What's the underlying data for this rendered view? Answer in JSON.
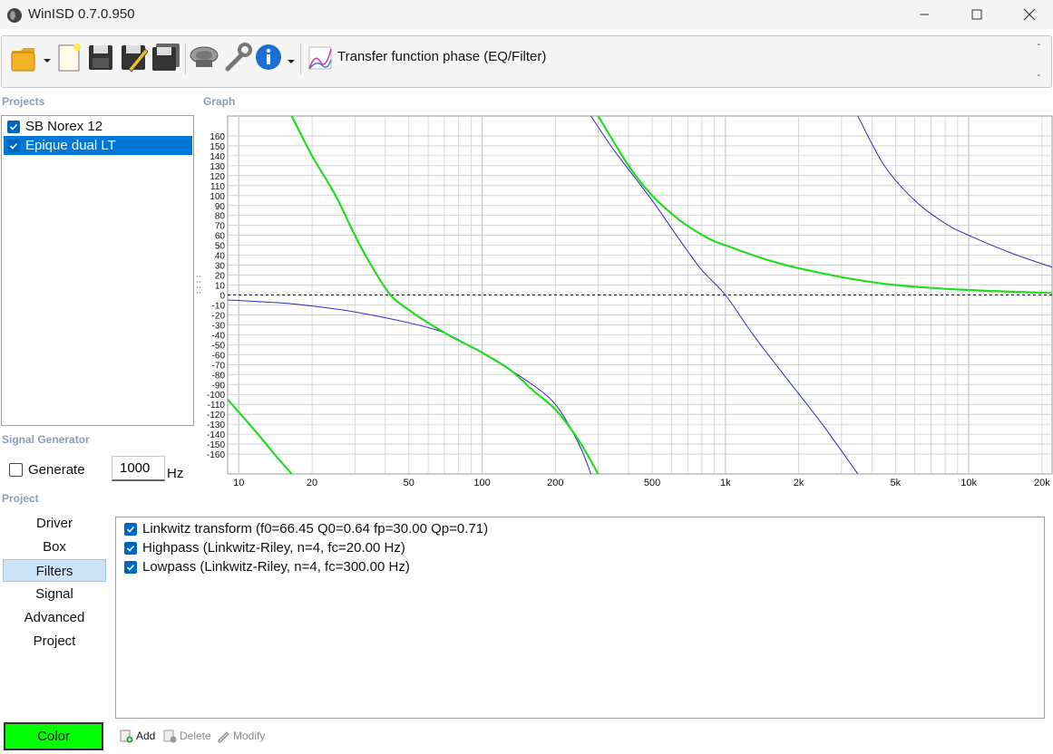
{
  "window": {
    "title": "WinISD 0.7.0.950"
  },
  "toolbar": {
    "graph_title": "Transfer function phase (EQ/Filter)",
    "dash_top": "-",
    "dash_bottom": "-"
  },
  "projects": {
    "label": "Projects",
    "items": [
      {
        "name": "SB Norex 12",
        "checked": true,
        "selected": false
      },
      {
        "name": "Epique dual LT",
        "checked": true,
        "selected": true
      }
    ]
  },
  "graph": {
    "label": "Graph"
  },
  "signal_generator": {
    "label": "Signal Generator",
    "generate_label": "Generate",
    "frequency": "1000",
    "unit": "Hz"
  },
  "project": {
    "label": "Project",
    "nav": [
      "Driver",
      "Box",
      "Filters",
      "Signal",
      "Advanced",
      "Project"
    ],
    "active_nav": "Filters",
    "color_label": "Color"
  },
  "filters": {
    "items": [
      "Linkwitz transform (f0=66.45 Q0=0.64 fp=30.00 Qp=0.71)",
      "Highpass (Linkwitz-Riley, n=4, fc=20.00 Hz)",
      "Lowpass (Linkwitz-Riley, n=4, fc=300.00 Hz)"
    ],
    "add_label": "Add",
    "delete_label": "Delete",
    "modify_label": "Modify"
  },
  "chart_data": {
    "type": "line",
    "xscale": "log",
    "xlim": [
      9,
      22000
    ],
    "ylim": [
      -180,
      180
    ],
    "x_ticks": [
      {
        "value": 10,
        "label": "10"
      },
      {
        "value": 20,
        "label": "20"
      },
      {
        "value": 50,
        "label": "50"
      },
      {
        "value": 100,
        "label": "100"
      },
      {
        "value": 200,
        "label": "200"
      },
      {
        "value": 500,
        "label": "500"
      },
      {
        "value": 1000,
        "label": "1k"
      },
      {
        "value": 2000,
        "label": "2k"
      },
      {
        "value": 5000,
        "label": "5k"
      },
      {
        "value": 10000,
        "label": "10k"
      },
      {
        "value": 20000,
        "label": "20k"
      }
    ],
    "y_ticks": [
      160,
      150,
      140,
      130,
      120,
      110,
      100,
      90,
      80,
      70,
      60,
      50,
      40,
      30,
      20,
      10,
      0,
      -10,
      -20,
      -30,
      -40,
      -50,
      -60,
      -70,
      -80,
      -90,
      -100,
      -110,
      -120,
      -130,
      -140,
      -150,
      -160
    ],
    "reference_line": 0,
    "colors": {
      "green": "#22dd22",
      "blue": "#2b2bc8",
      "grid": "#c8c8c8"
    },
    "series": [
      {
        "color": "green",
        "segments": [
          [
            [
              16.5,
              180
            ],
            [
              20,
              140
            ],
            [
              25,
              100
            ],
            [
              30,
              60
            ],
            [
              35,
              30
            ],
            [
              42,
              0
            ],
            [
              50,
              -15
            ],
            [
              60,
              -28
            ],
            [
              75,
              -42
            ],
            [
              90,
              -52
            ],
            [
              100,
              -58
            ],
            [
              130,
              -75
            ],
            [
              160,
              -95
            ],
            [
              200,
              -115
            ],
            [
              240,
              -140
            ],
            [
              270,
              -160
            ],
            [
              300,
              -180
            ]
          ],
          [
            [
              9,
              -105
            ],
            [
              12,
              -140
            ],
            [
              14,
              -160
            ],
            [
              16.5,
              -180
            ]
          ],
          [
            [
              300,
              180
            ],
            [
              400,
              130
            ],
            [
              500,
              100
            ],
            [
              650,
              75
            ],
            [
              850,
              57
            ],
            [
              1000,
              50
            ],
            [
              1500,
              35
            ],
            [
              2000,
              27
            ],
            [
              3000,
              18
            ],
            [
              5000,
              10
            ],
            [
              10000,
              5
            ],
            [
              22000,
              2
            ]
          ]
        ]
      },
      {
        "color": "blue",
        "segments": [
          [
            [
              9,
              -5
            ],
            [
              15,
              -8
            ],
            [
              20,
              -11
            ],
            [
              30,
              -17
            ],
            [
              50,
              -28
            ],
            [
              70,
              -38
            ],
            [
              90,
              -52
            ],
            [
              100,
              -58
            ],
            [
              150,
              -85
            ],
            [
              200,
              -110
            ],
            [
              250,
              -150
            ],
            [
              280,
              -180
            ]
          ],
          [
            [
              280,
              180
            ],
            [
              350,
              145
            ],
            [
              500,
              95
            ],
            [
              650,
              55
            ],
            [
              800,
              25
            ],
            [
              1000,
              0
            ],
            [
              1300,
              -40
            ],
            [
              1800,
              -85
            ],
            [
              2500,
              -130
            ],
            [
              3500,
              -180
            ]
          ],
          [
            [
              3500,
              180
            ],
            [
              4500,
              130
            ],
            [
              6000,
              95
            ],
            [
              8000,
              72
            ],
            [
              10000,
              60
            ],
            [
              15000,
              42
            ],
            [
              22000,
              28
            ]
          ]
        ]
      }
    ]
  }
}
